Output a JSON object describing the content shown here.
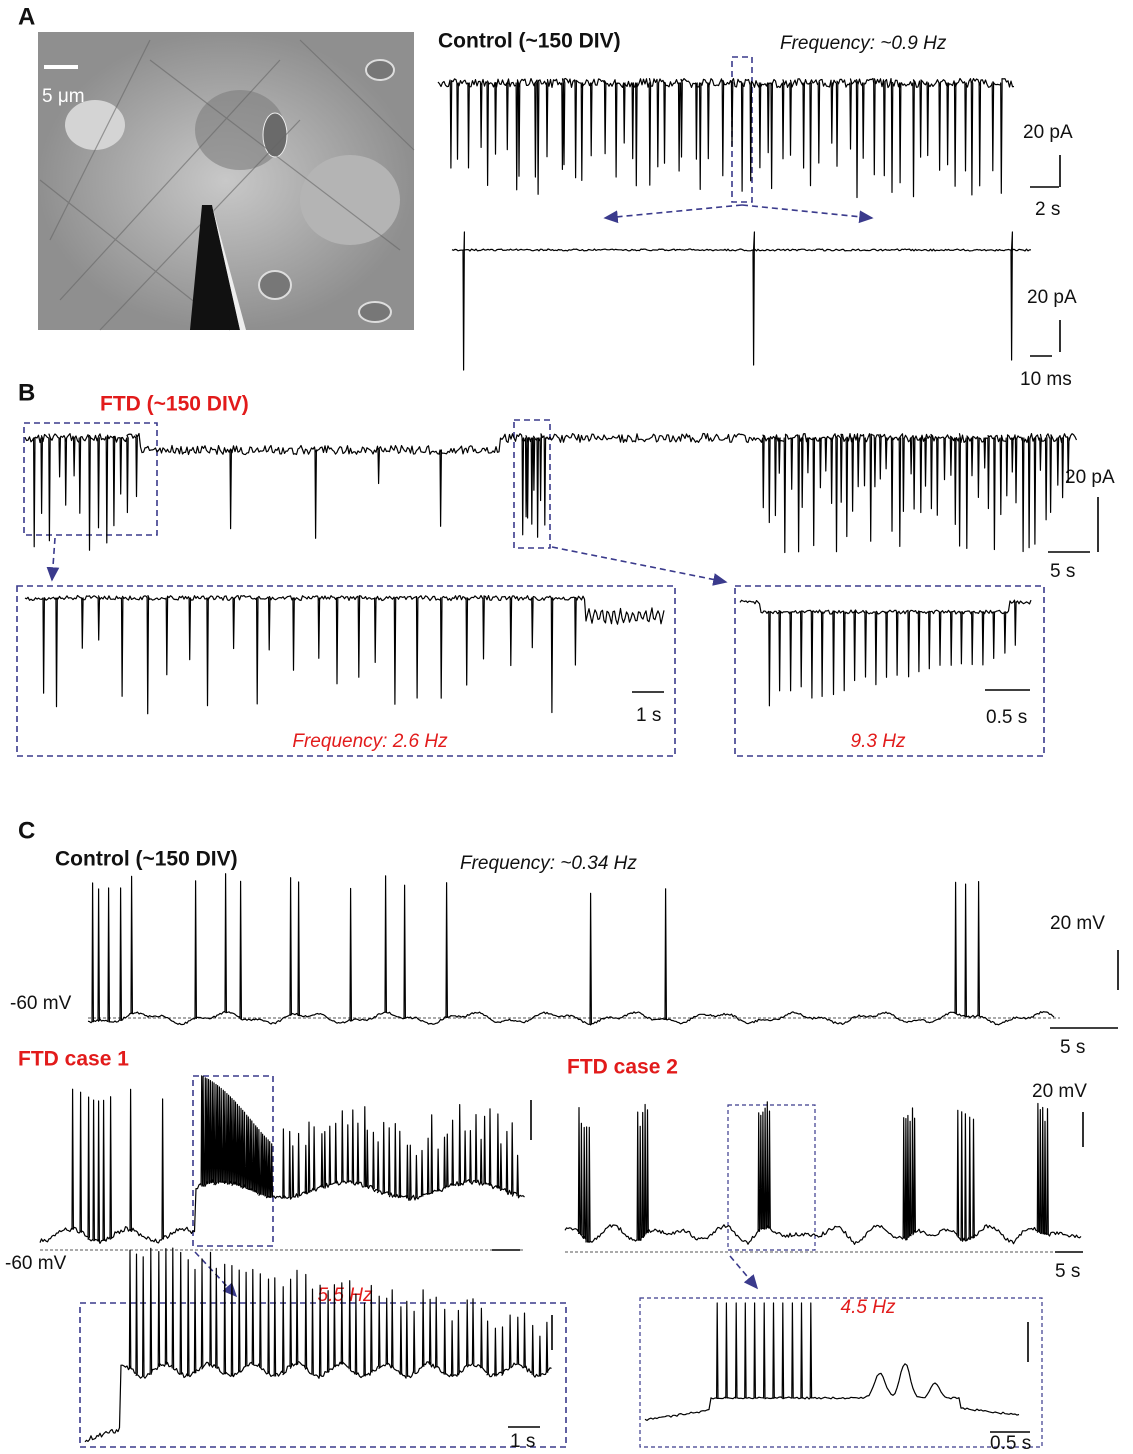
{
  "panels": {
    "A": {
      "label": "A",
      "image_scale": "5 μm",
      "title": "Control (~150 DIV)",
      "frequency": "Frequency: ~0.9 Hz",
      "trace_scale": {
        "y": "20 pA",
        "x": "2 s"
      },
      "zoom_scale": {
        "y": "20 pA",
        "x": "10 ms"
      }
    },
    "B": {
      "label": "B",
      "title": "FTD  (~150 DIV)",
      "trace_scale": {
        "y": "20 pA",
        "x": "5 s"
      },
      "zoom_left": {
        "scale_x": "1 s",
        "frequency": "Frequency: 2.6 Hz"
      },
      "zoom_right": {
        "scale_x": "0.5 s",
        "frequency": "9.3 Hz"
      }
    },
    "C": {
      "label": "C",
      "control": {
        "title": "Control (~150 DIV)",
        "frequency": "Frequency: ~0.34 Hz",
        "scale_y": "20 mV",
        "baseline": "-60 mV",
        "scale_x": "5 s"
      },
      "case1": {
        "title": "FTD  case 1",
        "baseline": "-60 mV",
        "zoom_frequency": "5.5 Hz",
        "zoom_scale_x": "1 s"
      },
      "case2": {
        "title": "FTD  case 2",
        "scale_y": "20 mV",
        "scale_x": "5 s",
        "zoom_frequency": "4.5 Hz",
        "zoom_scale_x": "0.5 s"
      }
    }
  }
}
